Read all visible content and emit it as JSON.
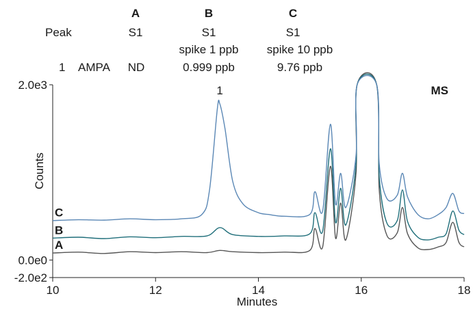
{
  "table": {
    "header_letters": [
      "A",
      "B",
      "C"
    ],
    "peak_label": "Peak",
    "sample_row": [
      "S1",
      "S1",
      "S1"
    ],
    "spike_row": [
      "spike 1 ppb",
      "spike 10 ppb"
    ],
    "result_row": {
      "peak_no": "1",
      "analyte": "AMPA",
      "values": [
        "ND",
        "0.999 ppb",
        "9.76 ppb"
      ]
    }
  },
  "chart_data": {
    "type": "line",
    "xlabel": "Minutes",
    "ylabel": "Counts",
    "xlim": [
      10,
      18
    ],
    "ylim": [
      -200,
      2000
    ],
    "x_ticks": [
      10,
      12,
      14,
      16,
      18
    ],
    "y_tick_labels": [
      "2.0e3",
      "0.0e0",
      "-2.0e2"
    ],
    "y_tick_values": [
      2000,
      0,
      -200
    ],
    "mode_label": "MS",
    "peak_annotation": {
      "label": "1",
      "x": 13.25
    },
    "series": [
      {
        "name": "A",
        "color": "#555555",
        "baseline": 80,
        "points": [
          [
            10,
            80
          ],
          [
            10.5,
            90
          ],
          [
            11,
            75
          ],
          [
            11.5,
            95
          ],
          [
            12,
            85
          ],
          [
            12.5,
            95
          ],
          [
            13,
            85
          ],
          [
            13.25,
            110
          ],
          [
            13.5,
            95
          ],
          [
            14,
            85
          ],
          [
            14.5,
            90
          ],
          [
            15,
            110
          ],
          [
            15.1,
            360
          ],
          [
            15.25,
            150
          ],
          [
            15.4,
            1070
          ],
          [
            15.5,
            250
          ],
          [
            15.6,
            650
          ],
          [
            15.7,
            230
          ],
          [
            15.9,
            1000
          ],
          [
            15.92,
            2000
          ],
          [
            16.3,
            2000
          ],
          [
            16.35,
            800
          ],
          [
            16.5,
            280
          ],
          [
            16.7,
            310
          ],
          [
            16.8,
            600
          ],
          [
            16.9,
            300
          ],
          [
            17.1,
            140
          ],
          [
            17.3,
            120
          ],
          [
            17.5,
            150
          ],
          [
            17.65,
            200
          ],
          [
            17.78,
            430
          ],
          [
            17.9,
            200
          ],
          [
            18,
            150
          ]
        ]
      },
      {
        "name": "B",
        "color": "#1f6e7a",
        "baseline": 250,
        "points": [
          [
            10,
            250
          ],
          [
            10.5,
            260
          ],
          [
            11,
            245
          ],
          [
            11.5,
            265
          ],
          [
            12,
            255
          ],
          [
            12.5,
            270
          ],
          [
            13,
            275
          ],
          [
            13.25,
            370
          ],
          [
            13.5,
            290
          ],
          [
            14,
            270
          ],
          [
            14.5,
            275
          ],
          [
            15,
            300
          ],
          [
            15.1,
            540
          ],
          [
            15.25,
            330
          ],
          [
            15.4,
            1270
          ],
          [
            15.5,
            430
          ],
          [
            15.6,
            820
          ],
          [
            15.7,
            400
          ],
          [
            15.9,
            1100
          ],
          [
            15.92,
            2000
          ],
          [
            16.3,
            2000
          ],
          [
            16.35,
            950
          ],
          [
            16.5,
            420
          ],
          [
            16.7,
            450
          ],
          [
            16.8,
            800
          ],
          [
            16.9,
            440
          ],
          [
            17.1,
            260
          ],
          [
            17.3,
            230
          ],
          [
            17.5,
            260
          ],
          [
            17.65,
            300
          ],
          [
            17.78,
            560
          ],
          [
            17.9,
            340
          ],
          [
            18,
            290
          ]
        ]
      },
      {
        "name": "C",
        "color": "#5a87b5",
        "baseline": 450,
        "points": [
          [
            10,
            450
          ],
          [
            10.5,
            460
          ],
          [
            11,
            455
          ],
          [
            11.5,
            470
          ],
          [
            12,
            460
          ],
          [
            12.5,
            470
          ],
          [
            12.9,
            520
          ],
          [
            13.05,
            800
          ],
          [
            13.2,
            1720
          ],
          [
            13.25,
            1780
          ],
          [
            13.35,
            1500
          ],
          [
            13.5,
            900
          ],
          [
            13.7,
            640
          ],
          [
            14,
            540
          ],
          [
            14.2,
            520
          ],
          [
            14.5,
            500
          ],
          [
            15,
            520
          ],
          [
            15.1,
            780
          ],
          [
            15.25,
            560
          ],
          [
            15.4,
            1550
          ],
          [
            15.5,
            640
          ],
          [
            15.6,
            990
          ],
          [
            15.7,
            600
          ],
          [
            15.9,
            1200
          ],
          [
            15.92,
            2000
          ],
          [
            16.3,
            2000
          ],
          [
            16.35,
            1100
          ],
          [
            16.5,
            700
          ],
          [
            16.7,
            740
          ],
          [
            16.8,
            990
          ],
          [
            16.9,
            720
          ],
          [
            17.1,
            520
          ],
          [
            17.3,
            470
          ],
          [
            17.5,
            520
          ],
          [
            17.65,
            600
          ],
          [
            17.78,
            760
          ],
          [
            17.9,
            560
          ],
          [
            18,
            530
          ]
        ]
      }
    ],
    "line_labels": [
      "C",
      "B",
      "A"
    ]
  }
}
